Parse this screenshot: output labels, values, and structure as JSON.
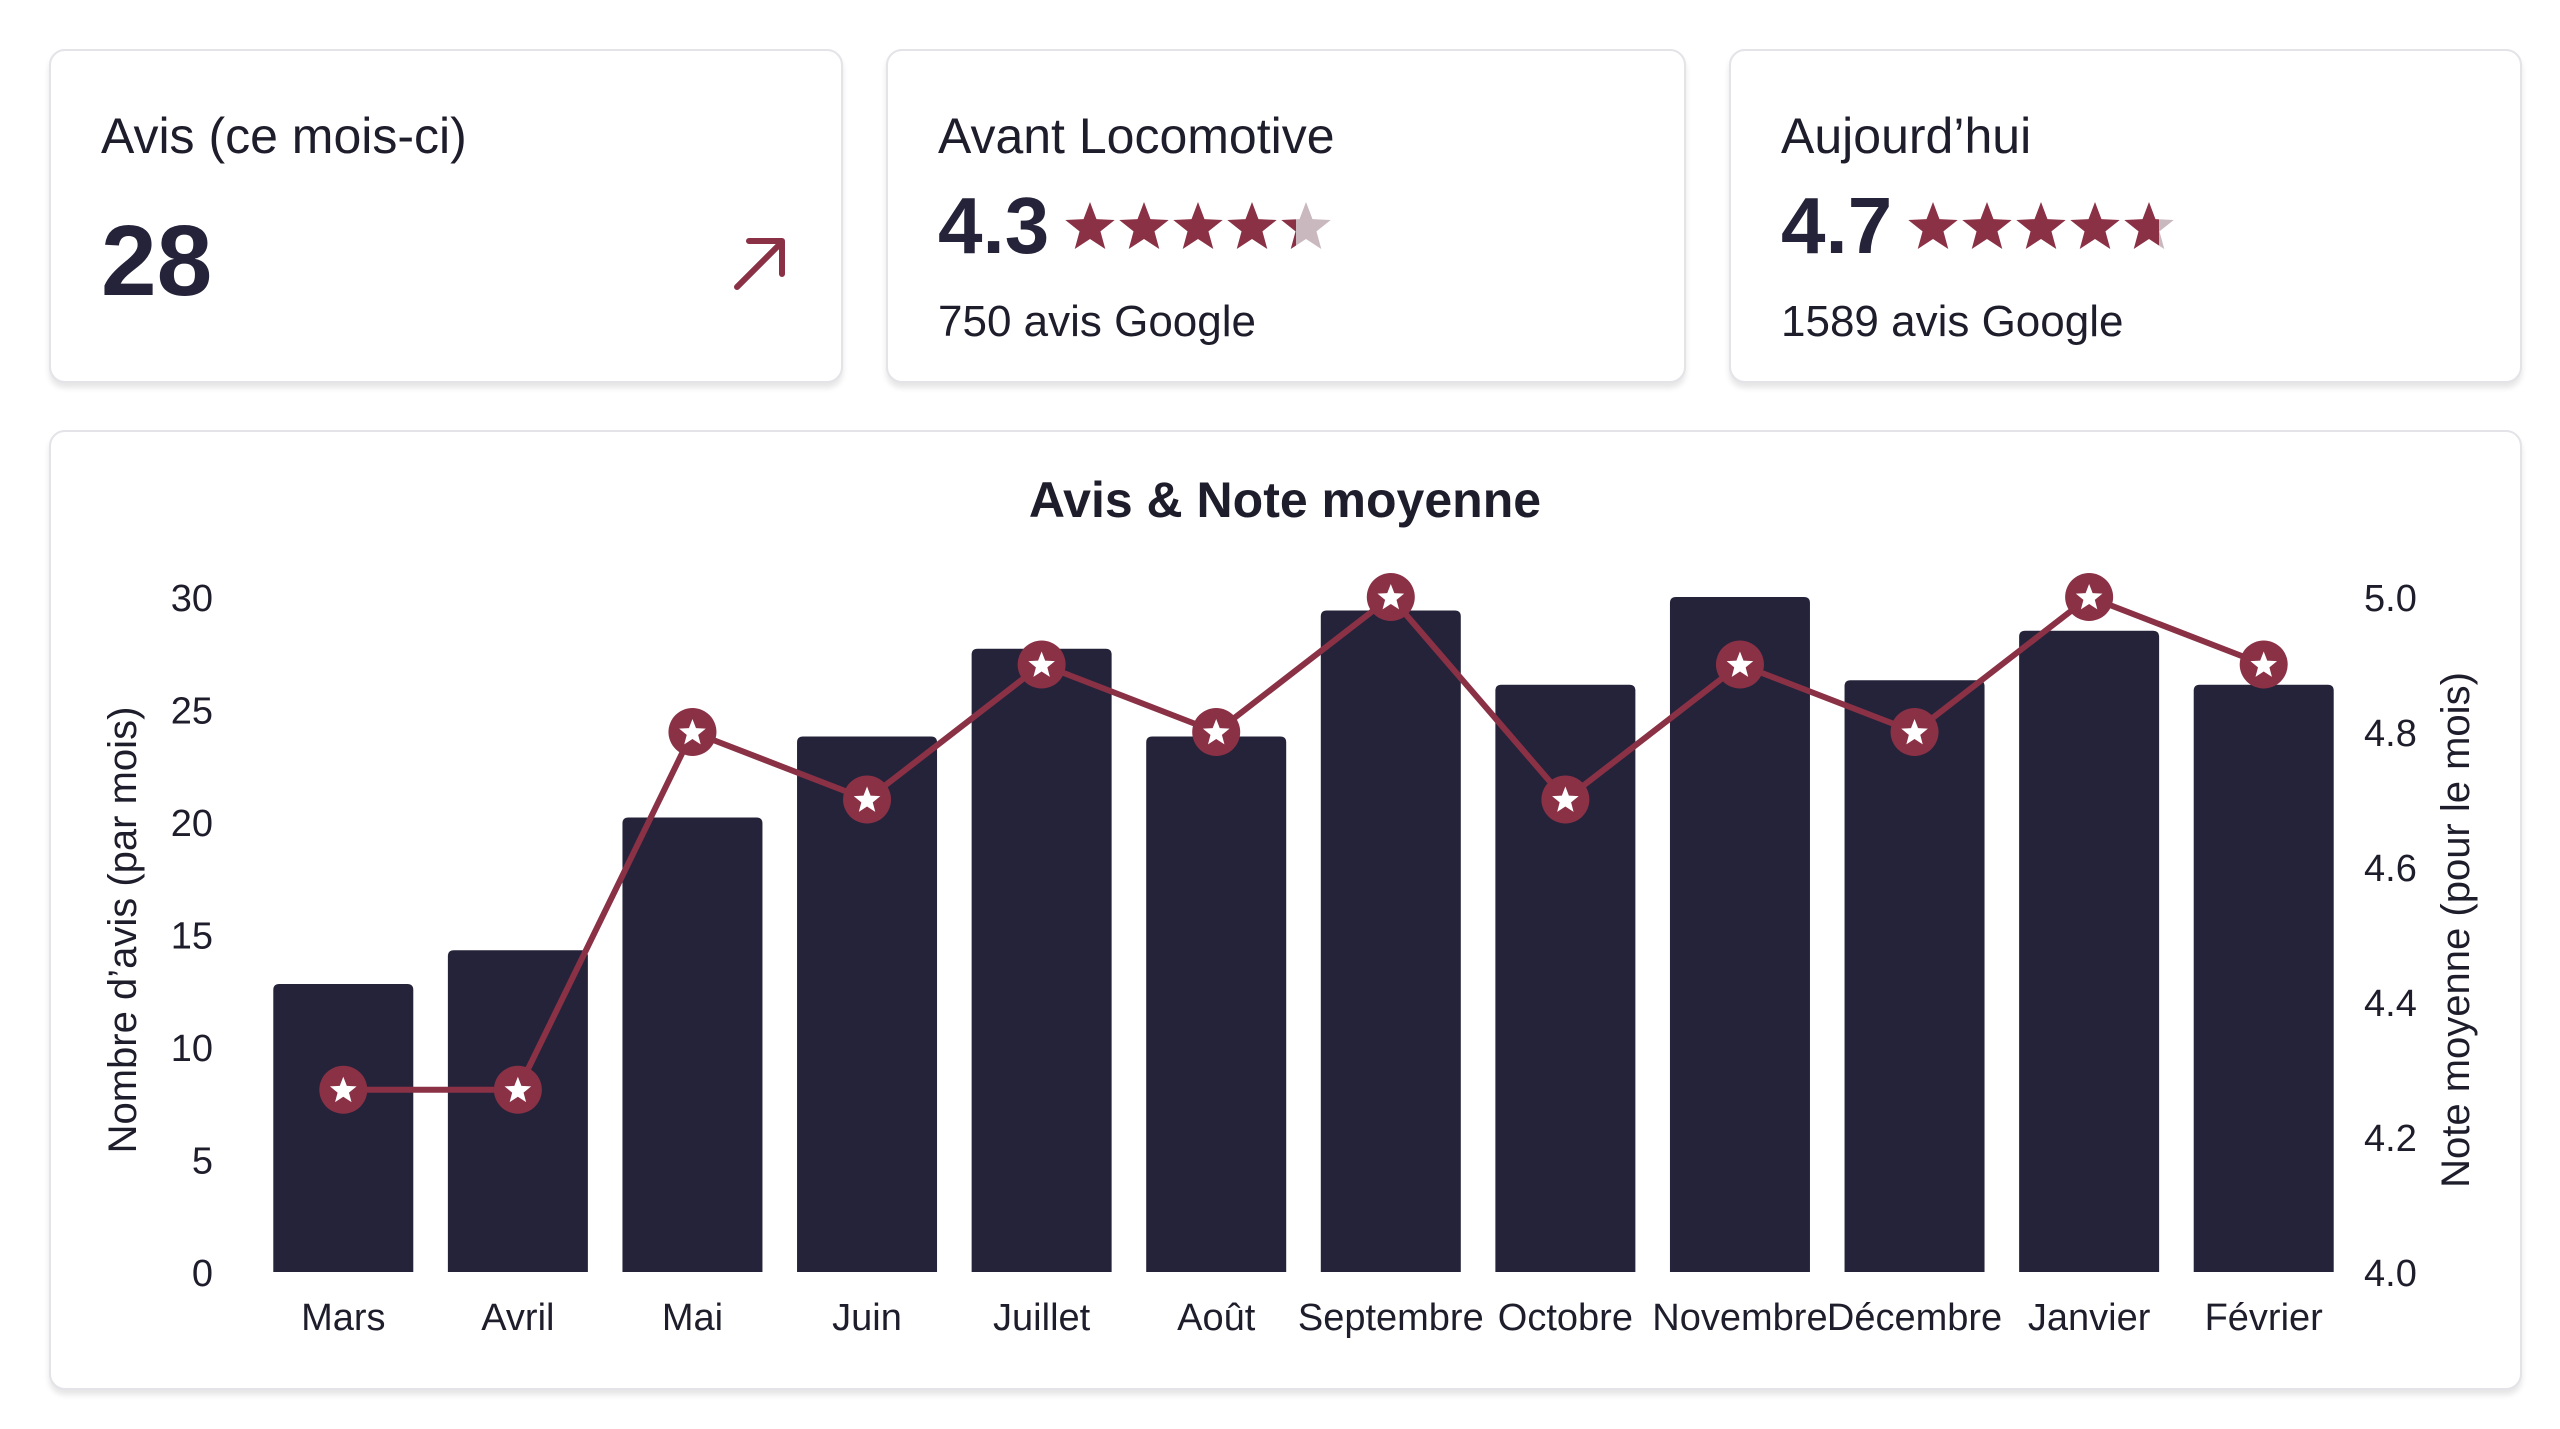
{
  "cards": {
    "reviews": {
      "label": "Avis (ce mois-ci)",
      "value": "28",
      "trend_icon": "arrow-up-right-icon"
    },
    "before": {
      "label": "Avant Locomotive",
      "rating": "4.3",
      "rating_value": 4.3,
      "count_text": "750 avis Google"
    },
    "today": {
      "label": "Aujourd’hui",
      "rating": "4.7",
      "rating_value": 4.7,
      "count_text": "1589 avis Google"
    }
  },
  "colors": {
    "bar": "#25233a",
    "line": "#8a3146",
    "star_empty": "#c9b8bd",
    "text": "#1e1d2b"
  },
  "chart_data": {
    "type": "bar",
    "title": "Avis & Note moyenne",
    "categories": [
      "Mars",
      "Avril",
      "Mai",
      "Juin",
      "Juillet",
      "Août",
      "Septembre",
      "Octobre",
      "Novembre",
      "Décembre",
      "Janvier",
      "Février"
    ],
    "series": [
      {
        "type": "bar",
        "axis": "left",
        "values": [
          12.8,
          14.3,
          20.2,
          23.8,
          27.7,
          23.8,
          29.4,
          26.1,
          30,
          26.3,
          28.5,
          26.1
        ]
      },
      {
        "type": "line",
        "axis": "right",
        "marker": "star-icon",
        "values": [
          4.27,
          4.27,
          4.8,
          4.7,
          4.9,
          4.8,
          5.0,
          4.7,
          4.9,
          4.8,
          5.0,
          4.9
        ]
      }
    ],
    "ylabel": "Nombre d’avis (par mois)",
    "ylabel_right": "Note moyenne (pour le mois)",
    "ylim": [
      0,
      30
    ],
    "ylim_right": [
      4.0,
      5.0
    ],
    "yticks": [
      "0",
      "5",
      "10",
      "15",
      "20",
      "25",
      "30"
    ],
    "yticks_right": [
      "4.0",
      "4.2",
      "4.4",
      "4.6",
      "4.8",
      "5.0"
    ],
    "grid": false
  }
}
